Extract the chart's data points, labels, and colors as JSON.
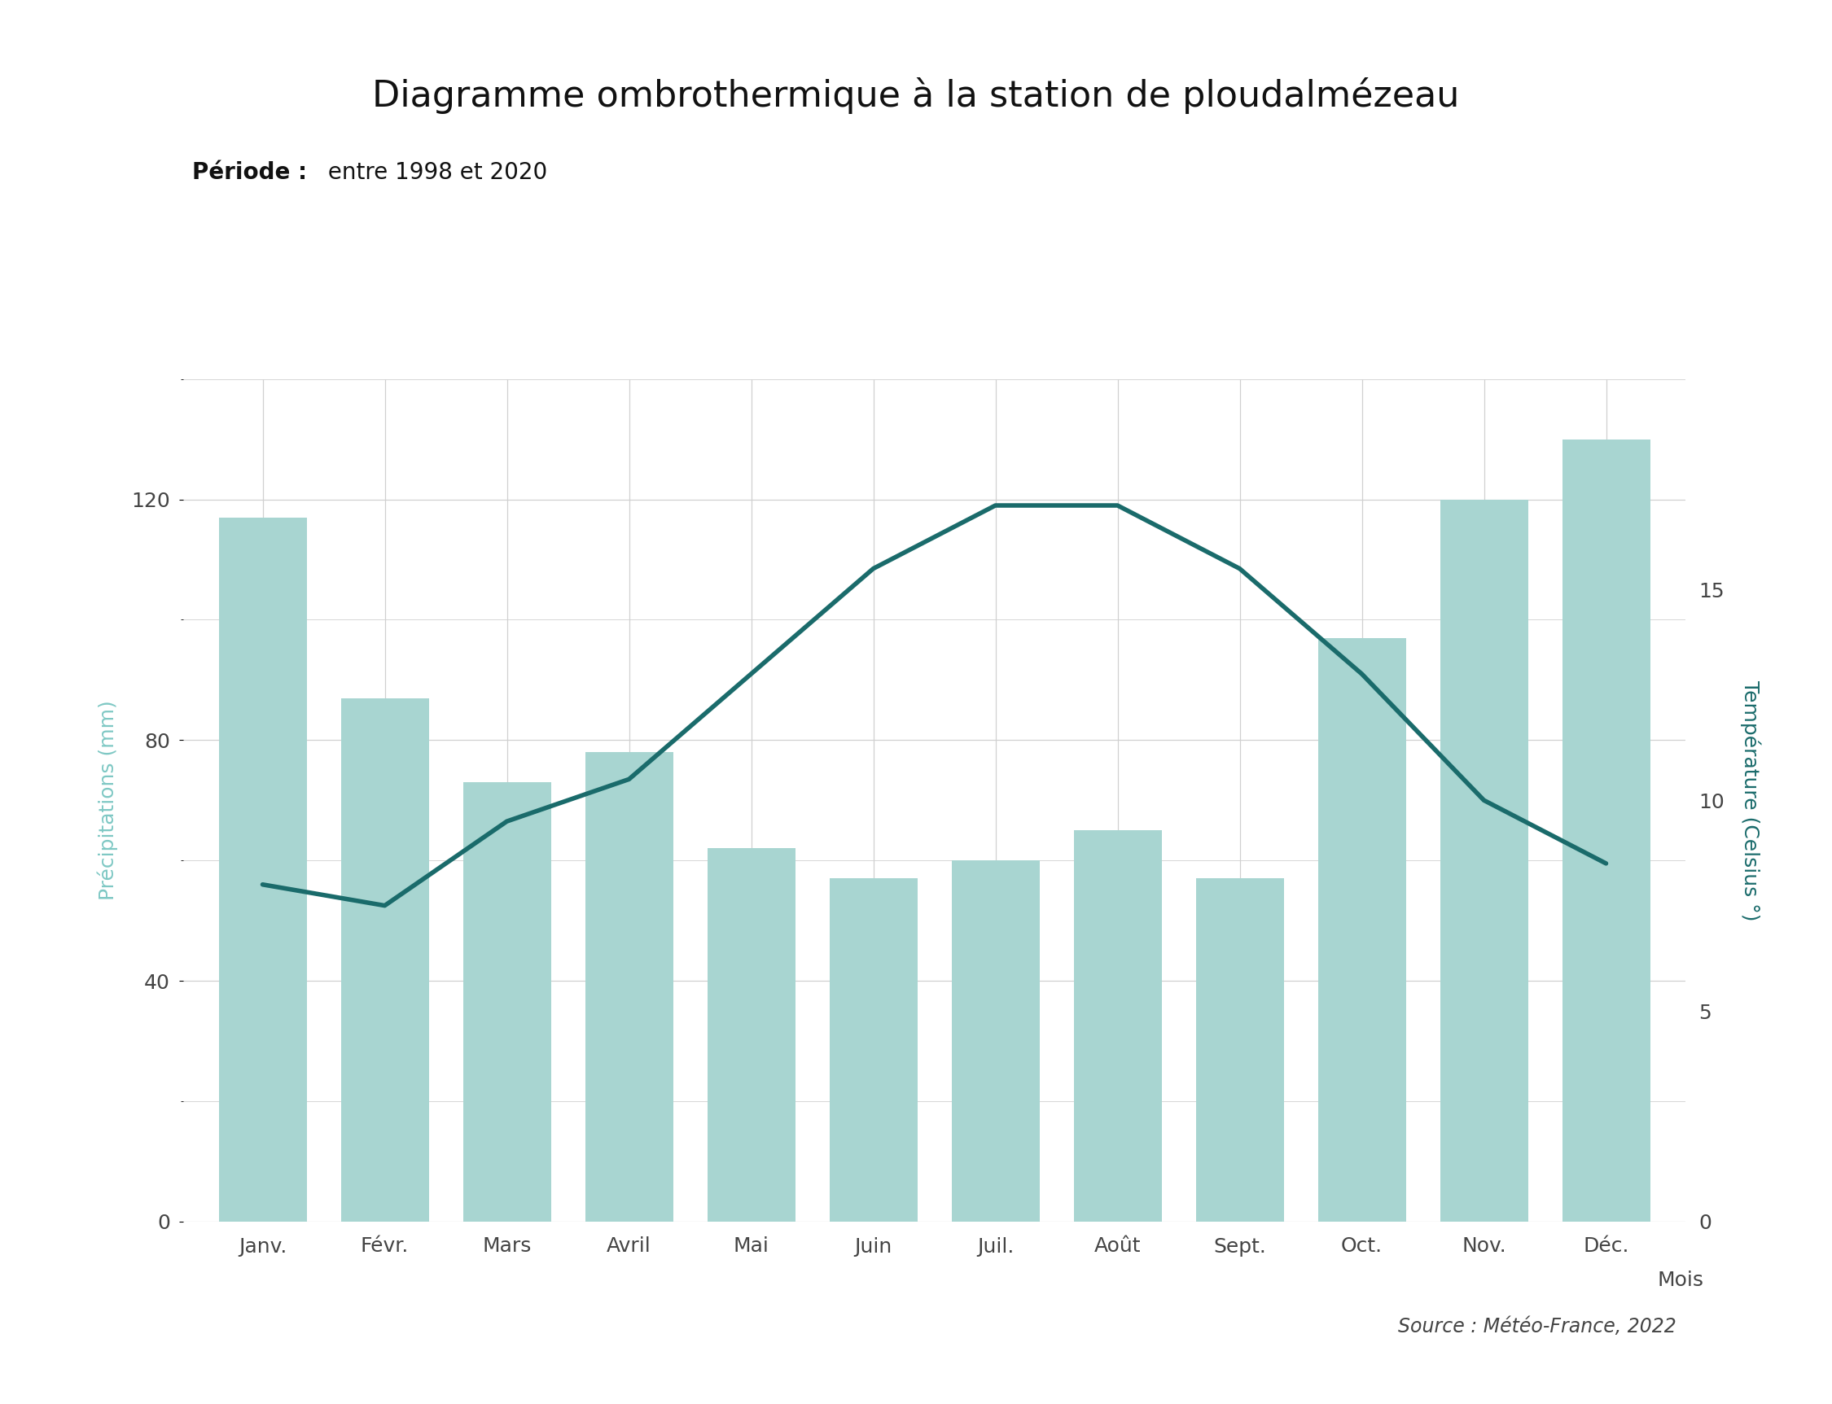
{
  "title": "Diagramme ombrothermique à la station de ploudalmézeau",
  "subtitle_bold": "Période :",
  "subtitle_normal": " entre 1998 et 2020",
  "source": "Source : Météo-France, 2022",
  "xlabel": "Mois",
  "ylabel_left": "Précipitations (mm)",
  "ylabel_right": "Température (Celsius °)",
  "months": [
    "Janv.",
    "Févr.",
    "Mars",
    "Avril",
    "Mai",
    "Juin",
    "Juil.",
    "Août",
    "Sept.",
    "Oct.",
    "Nov.",
    "Déc."
  ],
  "precipitation": [
    117,
    87,
    73,
    78,
    62,
    57,
    60,
    65,
    57,
    97,
    120,
    130
  ],
  "temperature": [
    8.0,
    7.5,
    9.5,
    10.5,
    13.0,
    15.5,
    17.0,
    17.0,
    15.5,
    13.0,
    10.0,
    8.5
  ],
  "bar_color": "#a8d5d1",
  "line_color": "#1a6b6b",
  "bar_alpha": 1.0,
  "ylim_left": [
    0,
    140
  ],
  "ylim_right": [
    0,
    20
  ],
  "yticks_left": [
    0,
    40,
    80,
    120
  ],
  "yticks_right": [
    0,
    5,
    10,
    15
  ],
  "title_fontsize": 32,
  "subtitle_fontsize": 20,
  "axis_label_fontsize": 18,
  "tick_fontsize": 18,
  "source_fontsize": 17,
  "line_width": 4.0,
  "background_color": "#ffffff",
  "grid_color": "#d0d0d0",
  "left_axis_color": "#7ec8c4",
  "right_axis_color": "#1a6b6b",
  "tick_label_color": "#444444"
}
